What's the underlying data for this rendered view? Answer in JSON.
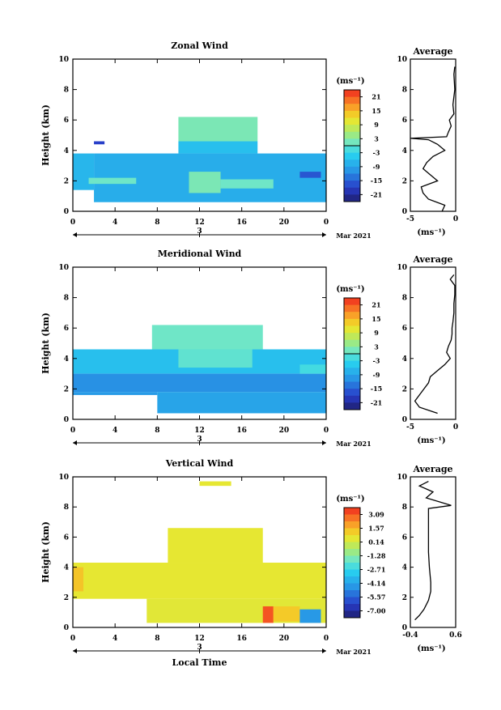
{
  "figure": {
    "date_label": "Mar 2021",
    "xlabel_bottom": "Local Time",
    "unit_label": "(ms⁻¹)",
    "avg_title": "Average",
    "avg_xlabel": "(ms⁻¹)"
  },
  "chart_data": [
    {
      "type": "heatmap",
      "name": "zonal",
      "title": "Zonal Wind",
      "ylabel": "Height (km)",
      "xlim": [
        0,
        24
      ],
      "ylim": [
        0,
        10
      ],
      "xticks": [
        "0",
        "4",
        "8",
        "12",
        "16",
        "20",
        "0"
      ],
      "xtick_values": [
        0,
        4,
        8,
        12,
        16,
        20,
        24
      ],
      "yticks": [
        "0",
        "2",
        "4",
        "6",
        "8",
        "10"
      ],
      "date_marker": "3",
      "colorbar": {
        "min": -24,
        "max": 24,
        "ticks": [
          "21",
          "15",
          "9",
          "3",
          "-3",
          "-9",
          "-15",
          "-21"
        ],
        "zero_line": true
      },
      "regions": [
        {
          "x": [
            2.0,
            24.0
          ],
          "y": [
            0.6,
            3.8
          ],
          "value": -8
        },
        {
          "x": [
            0.0,
            2.0
          ],
          "y": [
            1.4,
            3.8
          ],
          "value": -7
        },
        {
          "x": [
            10.0,
            17.5
          ],
          "y": [
            3.8,
            4.6
          ],
          "value": -6
        },
        {
          "x": [
            10.0,
            17.5
          ],
          "y": [
            4.6,
            6.2
          ],
          "value": 2
        },
        {
          "x": [
            1.5,
            6.0
          ],
          "y": [
            1.8,
            2.2
          ],
          "value": 1
        },
        {
          "x": [
            11.0,
            14.0
          ],
          "y": [
            1.2,
            2.6
          ],
          "value": 2
        },
        {
          "x": [
            14.0,
            19.0
          ],
          "y": [
            1.5,
            2.1
          ],
          "value": 1
        },
        {
          "x": [
            21.5,
            23.5
          ],
          "y": [
            2.2,
            2.6
          ],
          "value": -16
        },
        {
          "x": [
            2.0,
            3.0
          ],
          "y": [
            4.4,
            4.6
          ],
          "value": -18
        }
      ],
      "average_profile": {
        "xlim": [
          -5,
          0
        ],
        "xticks": [
          "-5",
          "0"
        ],
        "xtick_values": [
          -5,
          0
        ],
        "yticks": [
          "0",
          "2",
          "4",
          "6",
          "8",
          "10"
        ],
        "heights": [
          0,
          0.4,
          0.8,
          1.2,
          1.6,
          2.0,
          2.4,
          2.8,
          3.2,
          3.6,
          4.0,
          4.4,
          4.7,
          4.8,
          4.9,
          5.2,
          5.6,
          6.0,
          6.4,
          7.0,
          8.0,
          9.0,
          9.5
        ],
        "values": [
          -1.5,
          -1.2,
          -3.0,
          -3.6,
          -3.8,
          -2.0,
          -2.8,
          -3.6,
          -3.2,
          -2.5,
          -1.2,
          -2.0,
          -3.0,
          -5.0,
          -1.0,
          -0.8,
          -0.5,
          -0.7,
          -0.2,
          -0.3,
          -0.1,
          -0.2,
          -0.1
        ]
      }
    },
    {
      "type": "heatmap",
      "name": "meridional",
      "title": "Meridional Wind",
      "ylabel": "Height (km)",
      "xlim": [
        0,
        24
      ],
      "ylim": [
        0,
        10
      ],
      "xticks": [
        "0",
        "4",
        "8",
        "12",
        "16",
        "20",
        "0"
      ],
      "xtick_values": [
        0,
        4,
        8,
        12,
        16,
        20,
        24
      ],
      "yticks": [
        "0",
        "2",
        "4",
        "6",
        "8",
        "10"
      ],
      "date_marker": "3",
      "colorbar": {
        "min": -24,
        "max": 24,
        "ticks": [
          "21",
          "15",
          "9",
          "3",
          "-3",
          "-9",
          "-15",
          "-21"
        ],
        "zero_line": true
      },
      "regions": [
        {
          "x": [
            0.0,
            24.0
          ],
          "y": [
            3.0,
            4.6
          ],
          "value": -6
        },
        {
          "x": [
            0.0,
            24.0
          ],
          "y": [
            1.8,
            3.0
          ],
          "value": -11
        },
        {
          "x": [
            8.0,
            24.0
          ],
          "y": [
            0.4,
            1.8
          ],
          "value": -9
        },
        {
          "x": [
            0.0,
            8.0
          ],
          "y": [
            1.6,
            1.8
          ],
          "value": -10
        },
        {
          "x": [
            7.5,
            18.0
          ],
          "y": [
            4.6,
            6.2
          ],
          "value": 1
        },
        {
          "x": [
            10.0,
            17.0
          ],
          "y": [
            3.4,
            4.6
          ],
          "value": 0
        },
        {
          "x": [
            21.5,
            24.0
          ],
          "y": [
            3.0,
            3.6
          ],
          "value": -2
        }
      ],
      "average_profile": {
        "xlim": [
          -5,
          0
        ],
        "xticks": [
          "-5",
          "0"
        ],
        "xtick_values": [
          -5,
          0
        ],
        "yticks": [
          "0",
          "2",
          "4",
          "6",
          "8",
          "10"
        ],
        "heights": [
          0.4,
          0.8,
          1.2,
          1.6,
          2.0,
          2.4,
          2.8,
          3.2,
          3.6,
          4.0,
          4.4,
          4.8,
          5.2,
          5.6,
          6.0,
          6.4,
          7.0,
          7.6,
          8.2,
          8.8,
          9.2,
          9.5
        ],
        "values": [
          -2.0,
          -4.0,
          -4.5,
          -4.0,
          -3.5,
          -3.0,
          -2.8,
          -2.0,
          -1.2,
          -0.6,
          -1.0,
          -0.8,
          -0.5,
          -0.4,
          -0.4,
          -0.3,
          -0.2,
          -0.2,
          -0.1,
          -0.1,
          -0.6,
          -0.2
        ]
      }
    },
    {
      "type": "heatmap",
      "name": "vertical",
      "title": "Vertical Wind",
      "ylabel": "Height (km)",
      "xlabel": "Local Time",
      "xlim": [
        0,
        24
      ],
      "ylim": [
        0,
        10
      ],
      "xticks": [
        "0",
        "4",
        "8",
        "12",
        "16",
        "20",
        "0"
      ],
      "xtick_values": [
        0,
        4,
        8,
        12,
        16,
        20,
        24
      ],
      "yticks": [
        "0",
        "2",
        "4",
        "6",
        "8",
        "10"
      ],
      "date_marker": "3",
      "colorbar": {
        "min": -7.85,
        "max": 3.85,
        "ticks": [
          "3.09",
          "1.57",
          "0.14",
          "-1.28",
          "-2.71",
          "-4.14",
          "-5.57",
          "-7.00"
        ],
        "zero_line": false
      },
      "regions": [
        {
          "x": [
            0.0,
            24.0
          ],
          "y": [
            1.9,
            4.3
          ],
          "value": 0.6
        },
        {
          "x": [
            9.0,
            18.0
          ],
          "y": [
            4.3,
            6.6
          ],
          "value": 0.6
        },
        {
          "x": [
            7.0,
            24.0
          ],
          "y": [
            0.3,
            1.9
          ],
          "value": 0.5
        },
        {
          "x": [
            0.0,
            1.0
          ],
          "y": [
            2.4,
            4.0
          ],
          "value": 1.4
        },
        {
          "x": [
            18.0,
            19.0
          ],
          "y": [
            0.3,
            1.4
          ],
          "value": 3.2
        },
        {
          "x": [
            19.0,
            21.5
          ],
          "y": [
            0.4,
            1.4
          ],
          "value": 1.3
        },
        {
          "x": [
            21.5,
            23.5
          ],
          "y": [
            0.3,
            1.2
          ],
          "value": -4.5
        },
        {
          "x": [
            12.0,
            15.0
          ],
          "y": [
            9.4,
            9.7
          ],
          "value": 0.6
        }
      ],
      "average_profile": {
        "xlim": [
          -0.4,
          0.6
        ],
        "xticks": [
          "-0.4",
          "0.6"
        ],
        "xtick_values": [
          -0.4,
          0.6
        ],
        "yticks": [
          "0",
          "2",
          "4",
          "6",
          "8",
          "10"
        ],
        "heights": [
          0.5,
          0.8,
          1.2,
          1.8,
          2.4,
          3.0,
          4.0,
          5.0,
          6.0,
          7.0,
          7.9,
          8.1,
          8.6,
          9.0,
          9.4,
          9.7
        ],
        "values": [
          -0.3,
          -0.2,
          -0.1,
          0.0,
          0.05,
          0.05,
          0.02,
          0.0,
          0.0,
          0.0,
          0.0,
          0.5,
          -0.05,
          0.1,
          -0.2,
          0.0
        ]
      }
    }
  ]
}
